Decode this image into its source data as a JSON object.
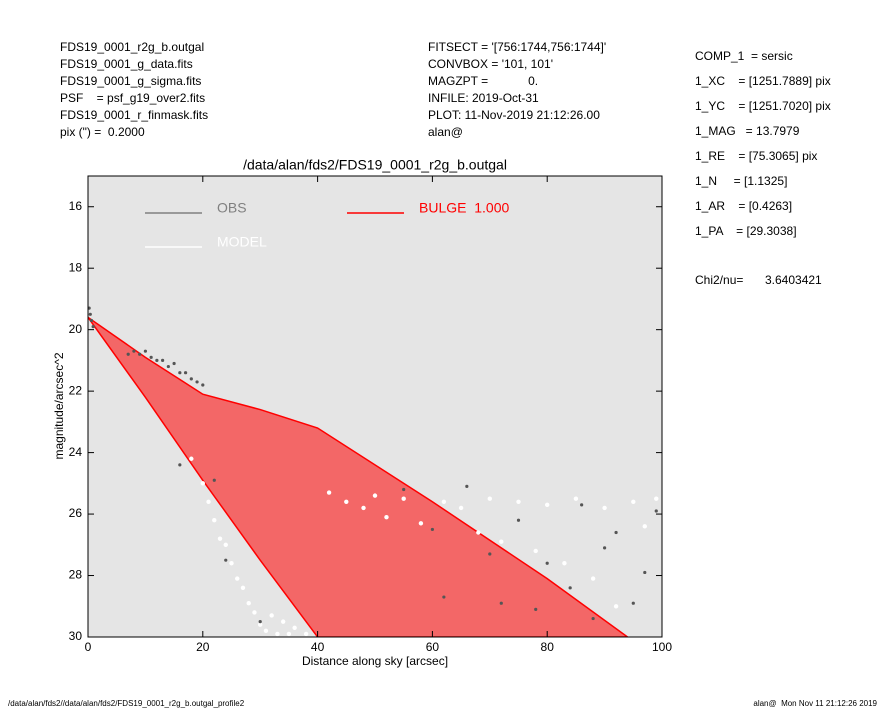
{
  "header_left": [
    "FDS19_0001_r2g_b.outgal",
    "FDS19_0001_g_data.fits",
    "FDS19_0001_g_sigma.fits",
    "PSF    = psf_g19_over2.fits",
    "FDS19_0001_r_finmask.fits",
    "pix (\") =  0.2000"
  ],
  "header_middle": [
    "FITSECT = '[756:1744,756:1744]'",
    "CONVBOX = '101, 101'",
    "MAGZPT =            0.",
    "INFILE: 2019-Oct-31",
    "PLOT: 11-Nov-2019 21:12:26.00",
    "alan@"
  ],
  "parameters": [
    "COMP_1  = sersic",
    "1_XC    = [1251.7889] pix",
    "1_YC    = [1251.7020] pix",
    "1_MAG   = 13.7979",
    "1_RE    = [75.3065] pix",
    "1_N     = [1.1325]",
    "1_AR    = [0.4263]",
    "1_PA    = [29.3038]"
  ],
  "chi2_label": "Chi2/nu=",
  "chi2_value": "3.6403421",
  "footer_left": "/data/alan/fds2//data/alan/fds2/FDS19_0001_r2g_b.outgal_profile2",
  "footer_right": "alan@  Mon Nov 11 21:12:26 2019",
  "chart_data": {
    "type": "scatter",
    "title": "/data/alan/fds2/FDS19_0001_r2g_b.outgal",
    "x_label": "Distance along sky [arcsec]",
    "y_label": "magnitude/arcsec^2",
    "xlim": [
      0,
      100
    ],
    "xticks": [
      0,
      20,
      40,
      60,
      80,
      100
    ],
    "ylim": [
      15,
      30
    ],
    "yticks": [
      16,
      18,
      20,
      22,
      24,
      26,
      28,
      30
    ],
    "y_inverted": true,
    "background": "#e5e5e5",
    "series": [
      {
        "name": "OBS",
        "color": "#555555",
        "legend_color": "#808080",
        "x": [
          0.2,
          0.4,
          0.6,
          0.9,
          7,
          8,
          9,
          10,
          11,
          12,
          13,
          14,
          15,
          16,
          17,
          18,
          19,
          20,
          16,
          22,
          24,
          30,
          55,
          60,
          62,
          66,
          70,
          72,
          75,
          78,
          80,
          84,
          86,
          88,
          90,
          92,
          95,
          97,
          99
        ],
        "values": [
          19.3,
          19.5,
          19.7,
          19.9,
          20.8,
          20.7,
          20.8,
          20.7,
          20.9,
          21.0,
          21.0,
          21.2,
          21.1,
          21.4,
          21.4,
          21.6,
          21.7,
          21.8,
          24.4,
          24.9,
          27.5,
          29.5,
          25.2,
          26.5,
          28.7,
          25.1,
          27.3,
          28.9,
          26.2,
          29.1,
          27.6,
          28.4,
          25.7,
          29.4,
          27.1,
          26.6,
          28.9,
          27.9,
          25.9
        ]
      },
      {
        "name": "MODEL",
        "color": "#ffffff",
        "legend_color": "#ffffff",
        "x": [
          18,
          20,
          21,
          22,
          23,
          24,
          25,
          26,
          27,
          28,
          29,
          30,
          31,
          32,
          33,
          34,
          35,
          36,
          38,
          42,
          45,
          48,
          50,
          52,
          55,
          58,
          62,
          65,
          68,
          70,
          72,
          75,
          78,
          80,
          83,
          85,
          88,
          90,
          92,
          95,
          97,
          99
        ],
        "values": [
          24.2,
          25.0,
          25.6,
          26.2,
          26.8,
          27.0,
          27.6,
          28.1,
          28.4,
          28.9,
          29.2,
          29.6,
          29.8,
          29.3,
          29.9,
          29.5,
          29.9,
          29.7,
          29.9,
          25.3,
          25.6,
          25.8,
          25.4,
          26.1,
          25.5,
          26.3,
          25.6,
          25.8,
          26.6,
          25.5,
          26.9,
          25.6,
          27.2,
          25.7,
          27.6,
          25.5,
          28.1,
          25.8,
          29.0,
          25.6,
          26.4,
          25.5
        ]
      },
      {
        "name": "BULGE  1.000",
        "color": "#ff0000",
        "legend_color": "#ff0000",
        "x": [
          0,
          10,
          20,
          30,
          40,
          60,
          80,
          94
        ],
        "values": [
          19.6,
          20.9,
          22.1,
          22.6,
          23.2,
          25.6,
          28.1,
          30.0
        ],
        "x_faint": [
          0,
          10,
          20,
          30,
          40
        ],
        "values_faint": [
          19.6,
          22.2,
          24.9,
          27.5,
          30.0
        ]
      }
    ]
  }
}
